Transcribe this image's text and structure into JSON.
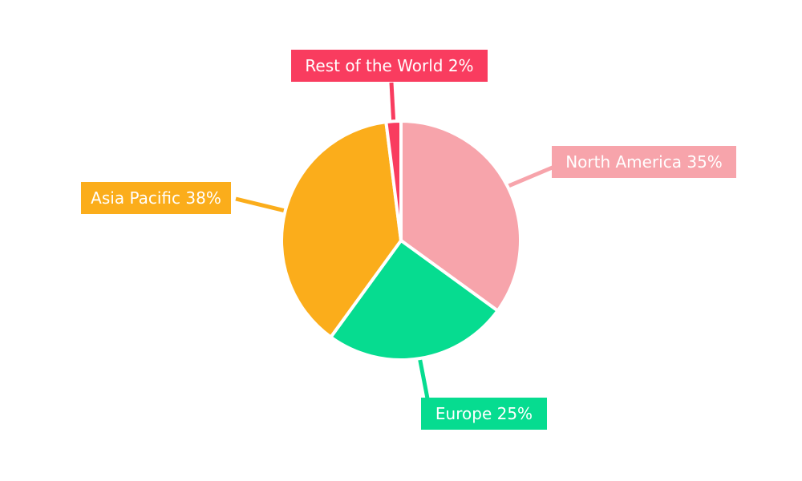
{
  "page": {
    "background_color": "#FFFFFF"
  },
  "chart_data": {
    "type": "pie",
    "title": "",
    "total": 100,
    "unit": "%",
    "direction": "clockwise",
    "start_angle_deg": 0,
    "slice_separator_color": "#FFFFFF",
    "label_text_color": "#FFFFFF",
    "label_placement": "callout-boxes",
    "leader_lines": true,
    "legend": "none",
    "slices": [
      {
        "label": "North America",
        "value": 35,
        "display": "North America 35%",
        "color": "#F7A4AB"
      },
      {
        "label": "Europe",
        "value": 25,
        "display": "Europe 25%",
        "color": "#06DC90"
      },
      {
        "label": "Asia Pacific",
        "value": 38,
        "display": "Asia Pacific 38%",
        "color": "#FBAD1B"
      },
      {
        "label": "Rest of the World",
        "value": 2,
        "display": "Rest of the World 2%",
        "color": "#F93C5F"
      }
    ]
  }
}
